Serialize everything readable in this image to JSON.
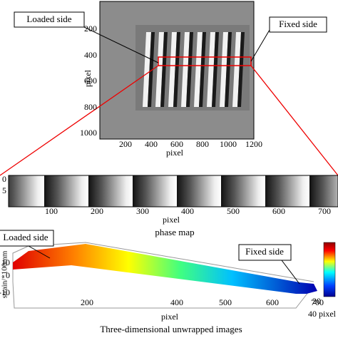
{
  "top_image": {
    "loaded_label": "Loaded side",
    "fixed_label": "Fixed side",
    "y_axis_label": "pixel",
    "x_axis_label": "pixel",
    "yticks": [
      "200",
      "400",
      "600",
      "800",
      "1000"
    ],
    "xticks": [
      "200",
      "400",
      "600",
      "800",
      "1000",
      "1200"
    ]
  },
  "phase_map": {
    "yticks": [
      "0",
      "5"
    ],
    "xticks": [
      "100",
      "200",
      "300",
      "400",
      "500",
      "600",
      "700"
    ],
    "x_axis_label": "pixel",
    "caption": "phase map"
  },
  "unwrapped": {
    "loaded_label": "Loaded side",
    "fixed_label": "Fixed side",
    "y_axis_label": "strain/*100mm",
    "zticks": [
      "10",
      "0",
      "-10"
    ],
    "xticks": [
      "200",
      "400",
      "500",
      "600",
      "700"
    ],
    "depth_ticks": [
      "20",
      "40 pixel"
    ],
    "x_axis_label": "pixel",
    "caption": "Three-dimensional unwrapped images"
  }
}
